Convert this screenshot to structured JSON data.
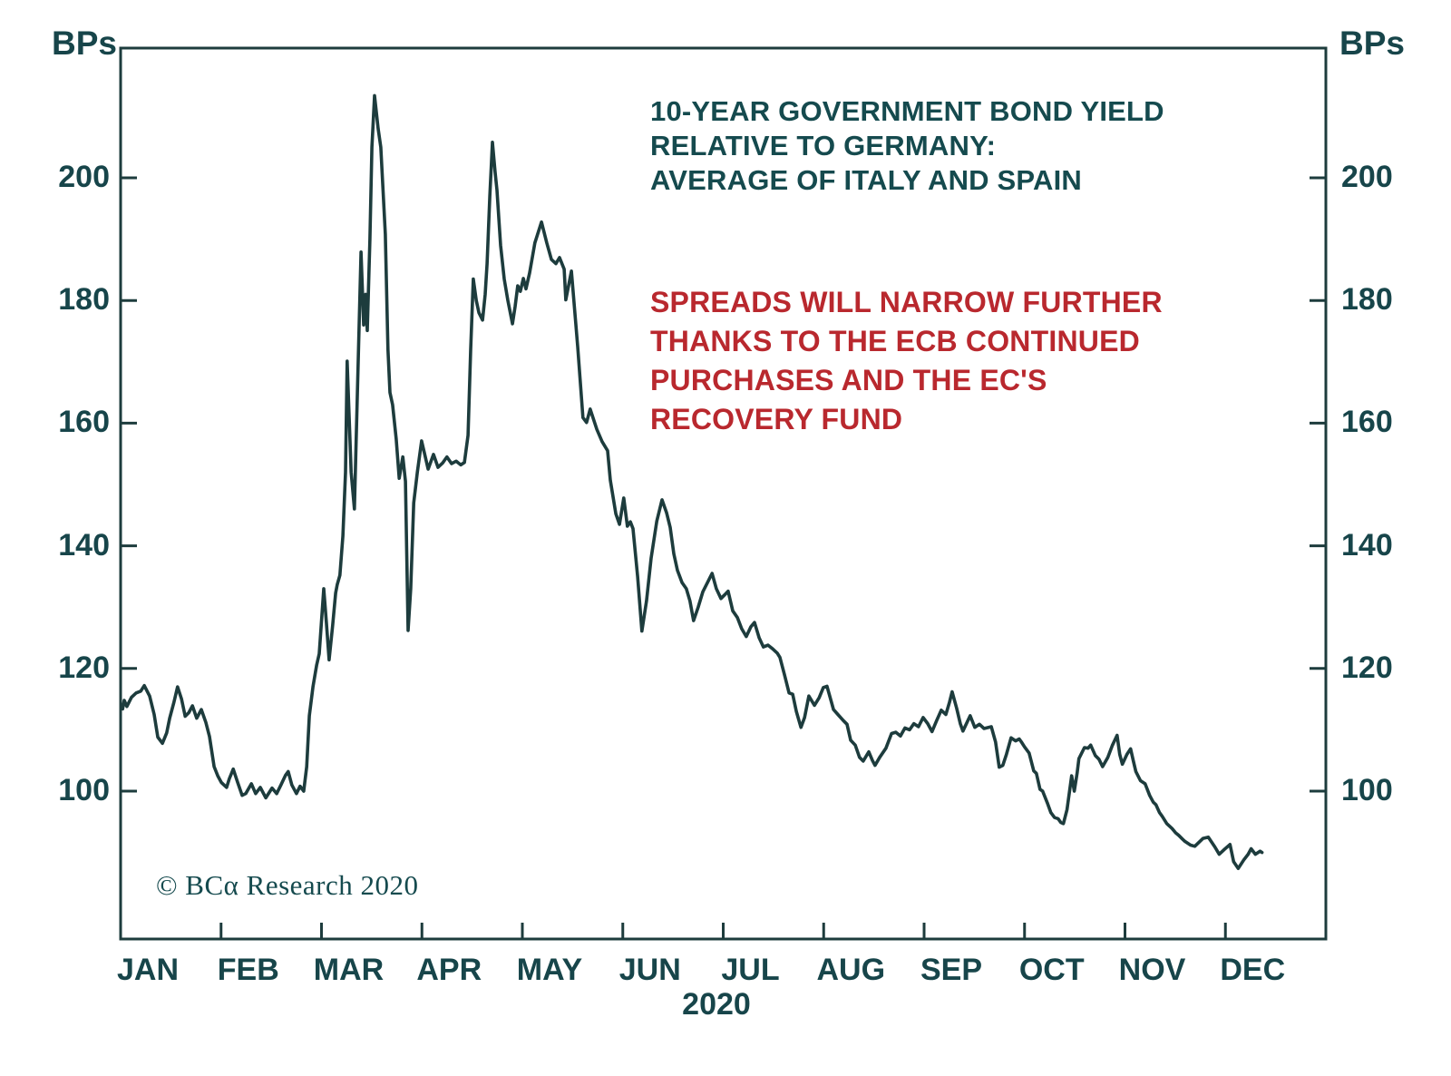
{
  "colors": {
    "line": "#1d3c3d",
    "axis": "#1d3c3d",
    "title_text": "#154a4e",
    "annotation_text": "#b9282e",
    "label_text": "#17454a"
  },
  "header": {
    "unit_left": "BPs",
    "unit_right": "BPs"
  },
  "title": "10-YEAR GOVERNMENT BOND YIELD\nRELATIVE TO GERMANY:\nAVERAGE OF ITALY AND SPAIN",
  "annotation": "SPREADS WILL NARROW FURTHER\nTHANKS TO THE ECB CONTINUED\nPURCHASES AND THE EC'S\nRECOVERY FUND",
  "copyright": "© BCα Research 2020",
  "chart_data": {
    "type": "line",
    "title": "10-YEAR GOVERNMENT BOND YIELD RELATIVE TO GERMANY: AVERAGE OF ITALY AND SPAIN",
    "ylabel": "BPs",
    "xlabel": "2020",
    "ylim": [
      78,
      221
    ],
    "grid": false,
    "legend_position": "none",
    "x_axis": {
      "months": [
        "JAN",
        "FEB",
        "MAR",
        "APR",
        "MAY",
        "JUN",
        "JUL",
        "AUG",
        "SEP",
        "OCT",
        "NOV",
        "DEC"
      ],
      "year": "2020",
      "days_in_year": 366
    },
    "y_axis": {
      "ticks": [
        100,
        120,
        140,
        160,
        180,
        200
      ],
      "unit": "BPs"
    },
    "series": [
      {
        "name": "AVERAGE OF ITALY AND SPAIN",
        "x_unit": "day-of-year-2020",
        "y_unit": "basis points",
        "points": [
          [
            0.6,
            113.4
          ],
          [
            1.1,
            114.8
          ],
          [
            1.9,
            113.8
          ],
          [
            3.3,
            115.3
          ],
          [
            4.7,
            116.0
          ],
          [
            6.1,
            116.3
          ],
          [
            7.2,
            117.2
          ],
          [
            8.8,
            115.5
          ],
          [
            10.2,
            112.5
          ],
          [
            11.3,
            108.8
          ],
          [
            12.7,
            107.8
          ],
          [
            14.0,
            109.5
          ],
          [
            14.9,
            111.9
          ],
          [
            16.2,
            114.5
          ],
          [
            17.3,
            117.0
          ],
          [
            18.5,
            115.0
          ],
          [
            19.6,
            112.2
          ],
          [
            20.7,
            112.8
          ],
          [
            21.8,
            113.9
          ],
          [
            23.1,
            111.9
          ],
          [
            24.5,
            113.3
          ],
          [
            25.9,
            111.2
          ],
          [
            27.0,
            108.9
          ],
          [
            28.4,
            104.0
          ],
          [
            29.5,
            102.5
          ],
          [
            30.6,
            101.4
          ],
          [
            32.2,
            100.6
          ],
          [
            33.0,
            102.0
          ],
          [
            34.2,
            103.6
          ],
          [
            35.5,
            101.5
          ],
          [
            36.9,
            99.3
          ],
          [
            38.0,
            99.6
          ],
          [
            39.7,
            101.2
          ],
          [
            41.0,
            99.6
          ],
          [
            42.4,
            100.6
          ],
          [
            44.1,
            98.9
          ],
          [
            46.0,
            100.5
          ],
          [
            47.4,
            99.6
          ],
          [
            48.7,
            101.0
          ],
          [
            50.1,
            102.6
          ],
          [
            50.9,
            103.2
          ],
          [
            52.0,
            101.0
          ],
          [
            53.4,
            99.6
          ],
          [
            54.5,
            100.8
          ],
          [
            55.6,
            100.0
          ],
          [
            56.5,
            104.0
          ],
          [
            57.3,
            112.3
          ],
          [
            58.4,
            117.0
          ],
          [
            59.5,
            120.5
          ],
          [
            60.3,
            122.4
          ],
          [
            61.7,
            133.0
          ],
          [
            62.5,
            127.5
          ],
          [
            63.3,
            121.4
          ],
          [
            64.4,
            127.0
          ],
          [
            65.3,
            132.3
          ],
          [
            65.8,
            133.7
          ],
          [
            66.6,
            135.2
          ],
          [
            67.5,
            141.6
          ],
          [
            68.3,
            152.0
          ],
          [
            68.8,
            170.1
          ],
          [
            70.0,
            152.0
          ],
          [
            71.0,
            146.0
          ],
          [
            71.9,
            165.0
          ],
          [
            73.0,
            187.9
          ],
          [
            73.8,
            176.0
          ],
          [
            74.4,
            181.0
          ],
          [
            74.9,
            175.1
          ],
          [
            75.7,
            190.0
          ],
          [
            76.3,
            205.0
          ],
          [
            77.1,
            213.4
          ],
          [
            78.2,
            208.0
          ],
          [
            79.0,
            205.0
          ],
          [
            80.4,
            190.8
          ],
          [
            81.2,
            172.0
          ],
          [
            81.8,
            165.0
          ],
          [
            82.6,
            163.0
          ],
          [
            83.7,
            157.4
          ],
          [
            84.6,
            151.0
          ],
          [
            85.7,
            154.5
          ],
          [
            86.5,
            150.5
          ],
          [
            87.3,
            126.2
          ],
          [
            88.1,
            133.0
          ],
          [
            89.0,
            147.0
          ],
          [
            90.1,
            152.0
          ],
          [
            91.4,
            157.1
          ],
          [
            92.3,
            155.0
          ],
          [
            93.4,
            152.5
          ],
          [
            95.0,
            154.9
          ],
          [
            96.4,
            152.8
          ],
          [
            97.8,
            153.5
          ],
          [
            99.1,
            154.5
          ],
          [
            100.5,
            153.4
          ],
          [
            101.9,
            153.8
          ],
          [
            103.3,
            153.2
          ],
          [
            104.4,
            153.6
          ],
          [
            105.5,
            158.0
          ],
          [
            106.3,
            172.0
          ],
          [
            107.1,
            183.5
          ],
          [
            108.0,
            180.0
          ],
          [
            108.8,
            178.0
          ],
          [
            109.9,
            176.8
          ],
          [
            110.7,
            181.0
          ],
          [
            111.3,
            186.0
          ],
          [
            112.1,
            197.0
          ],
          [
            112.9,
            205.8
          ],
          [
            113.7,
            201.0
          ],
          [
            114.3,
            198.0
          ],
          [
            115.4,
            189.0
          ],
          [
            116.5,
            183.5
          ],
          [
            117.6,
            180.0
          ],
          [
            119.0,
            176.2
          ],
          [
            119.8,
            179.0
          ],
          [
            120.6,
            182.4
          ],
          [
            121.4,
            181.5
          ],
          [
            122.3,
            183.6
          ],
          [
            123.1,
            181.9
          ],
          [
            124.2,
            184.5
          ],
          [
            125.8,
            189.4
          ],
          [
            127.8,
            192.8
          ],
          [
            129.4,
            189.4
          ],
          [
            130.8,
            186.7
          ],
          [
            132.2,
            186.0
          ],
          [
            133.3,
            187.0
          ],
          [
            134.7,
            185.1
          ],
          [
            135.2,
            180.1
          ],
          [
            136.9,
            184.8
          ],
          [
            138.8,
            172.5
          ],
          [
            140.4,
            160.9
          ],
          [
            141.5,
            160.1
          ],
          [
            142.6,
            162.3
          ],
          [
            144.6,
            159.0
          ],
          [
            146.2,
            157.0
          ],
          [
            147.9,
            155.5
          ],
          [
            148.7,
            150.7
          ],
          [
            150.4,
            145.2
          ],
          [
            151.5,
            143.5
          ],
          [
            152.8,
            147.8
          ],
          [
            153.9,
            143.2
          ],
          [
            154.8,
            143.9
          ],
          [
            155.6,
            142.8
          ],
          [
            157.0,
            135.0
          ],
          [
            158.3,
            126.1
          ],
          [
            159.7,
            131.0
          ],
          [
            161.1,
            138.0
          ],
          [
            162.8,
            144.0
          ],
          [
            164.4,
            147.5
          ],
          [
            165.8,
            145.4
          ],
          [
            166.9,
            143.0
          ],
          [
            168.0,
            138.7
          ],
          [
            169.1,
            136.0
          ],
          [
            170.5,
            134.0
          ],
          [
            171.8,
            133.0
          ],
          [
            172.9,
            131.0
          ],
          [
            174.0,
            127.8
          ],
          [
            175.4,
            130.0
          ],
          [
            176.8,
            132.5
          ],
          [
            178.2,
            134.0
          ],
          [
            179.6,
            135.5
          ],
          [
            180.9,
            133.0
          ],
          [
            182.3,
            131.4
          ],
          [
            183.4,
            132.0
          ],
          [
            184.5,
            132.6
          ],
          [
            185.9,
            129.4
          ],
          [
            187.3,
            128.3
          ],
          [
            188.6,
            126.5
          ],
          [
            190.0,
            125.2
          ],
          [
            191.4,
            126.8
          ],
          [
            192.5,
            127.5
          ],
          [
            193.9,
            125.0
          ],
          [
            195.2,
            123.5
          ],
          [
            196.6,
            123.8
          ],
          [
            198.0,
            123.2
          ],
          [
            199.4,
            122.5
          ],
          [
            200.2,
            121.8
          ],
          [
            201.6,
            119.0
          ],
          [
            203.0,
            116.0
          ],
          [
            204.1,
            115.8
          ],
          [
            205.2,
            113.0
          ],
          [
            206.6,
            110.4
          ],
          [
            207.7,
            112.0
          ],
          [
            209.0,
            115.5
          ],
          [
            210.7,
            114.0
          ],
          [
            212.1,
            115.2
          ],
          [
            213.4,
            116.9
          ],
          [
            214.5,
            117.1
          ],
          [
            215.6,
            115.0
          ],
          [
            216.5,
            113.3
          ],
          [
            217.8,
            112.5
          ],
          [
            219.5,
            111.5
          ],
          [
            220.6,
            110.9
          ],
          [
            221.7,
            108.3
          ],
          [
            223.1,
            107.5
          ],
          [
            224.4,
            105.5
          ],
          [
            225.5,
            104.9
          ],
          [
            227.2,
            106.4
          ],
          [
            228.3,
            105.0
          ],
          [
            229.1,
            104.2
          ],
          [
            230.5,
            105.5
          ],
          [
            232.4,
            107.0
          ],
          [
            234.1,
            109.4
          ],
          [
            235.4,
            109.6
          ],
          [
            236.8,
            109.0
          ],
          [
            238.2,
            110.3
          ],
          [
            239.6,
            110.0
          ],
          [
            240.9,
            111.0
          ],
          [
            242.3,
            110.5
          ],
          [
            243.7,
            112.0
          ],
          [
            245.1,
            111.0
          ],
          [
            246.4,
            109.7
          ],
          [
            247.8,
            111.5
          ],
          [
            249.2,
            113.2
          ],
          [
            250.6,
            112.5
          ],
          [
            251.7,
            114.5
          ],
          [
            252.5,
            116.2
          ],
          [
            253.9,
            113.5
          ],
          [
            255.0,
            111.0
          ],
          [
            255.8,
            109.8
          ],
          [
            258.0,
            112.3
          ],
          [
            259.4,
            110.4
          ],
          [
            260.8,
            110.9
          ],
          [
            262.2,
            110.2
          ],
          [
            264.4,
            110.5
          ],
          [
            265.7,
            108.0
          ],
          [
            266.8,
            103.9
          ],
          [
            267.9,
            104.2
          ],
          [
            269.0,
            106.0
          ],
          [
            270.4,
            108.7
          ],
          [
            271.8,
            108.2
          ],
          [
            272.9,
            108.5
          ],
          [
            273.7,
            107.9
          ],
          [
            274.5,
            107.2
          ],
          [
            275.9,
            106.2
          ],
          [
            277.3,
            103.3
          ],
          [
            278.1,
            102.9
          ],
          [
            279.2,
            100.3
          ],
          [
            280.0,
            100.0
          ],
          [
            281.4,
            98.1
          ],
          [
            282.5,
            96.5
          ],
          [
            283.6,
            95.7
          ],
          [
            284.7,
            95.5
          ],
          [
            285.5,
            94.9
          ],
          [
            286.3,
            94.7
          ],
          [
            287.4,
            97.0
          ],
          [
            288.8,
            102.5
          ],
          [
            289.6,
            100.0
          ],
          [
            290.5,
            103.0
          ],
          [
            291.0,
            105.3
          ],
          [
            292.7,
            107.1
          ],
          [
            293.8,
            107.0
          ],
          [
            294.6,
            107.5
          ],
          [
            296.0,
            105.8
          ],
          [
            297.1,
            105.2
          ],
          [
            298.2,
            104.0
          ],
          [
            299.8,
            105.5
          ],
          [
            301.2,
            107.5
          ],
          [
            302.6,
            109.1
          ],
          [
            303.4,
            106.0
          ],
          [
            304.2,
            104.4
          ],
          [
            305.6,
            106.0
          ],
          [
            306.7,
            106.9
          ],
          [
            307.5,
            105.0
          ],
          [
            308.3,
            103.2
          ],
          [
            309.7,
            101.7
          ],
          [
            311.1,
            101.2
          ],
          [
            312.5,
            99.3
          ],
          [
            313.6,
            98.2
          ],
          [
            314.4,
            97.8
          ],
          [
            315.5,
            96.5
          ],
          [
            316.3,
            95.9
          ],
          [
            317.7,
            94.7
          ],
          [
            319.3,
            93.9
          ],
          [
            320.4,
            93.2
          ],
          [
            321.3,
            92.8
          ],
          [
            322.4,
            92.2
          ],
          [
            323.2,
            91.8
          ],
          [
            324.9,
            91.2
          ],
          [
            326.2,
            91.0
          ],
          [
            328.7,
            92.3
          ],
          [
            330.3,
            92.5
          ],
          [
            332.3,
            90.9
          ],
          [
            333.6,
            89.7
          ],
          [
            335.0,
            90.4
          ],
          [
            336.9,
            91.3
          ],
          [
            338.0,
            88.5
          ],
          [
            339.4,
            87.4
          ],
          [
            341.1,
            88.8
          ],
          [
            342.4,
            89.7
          ],
          [
            343.3,
            90.6
          ],
          [
            344.6,
            89.7
          ],
          [
            346.0,
            90.2
          ],
          [
            346.6,
            90.0
          ]
        ]
      }
    ]
  }
}
